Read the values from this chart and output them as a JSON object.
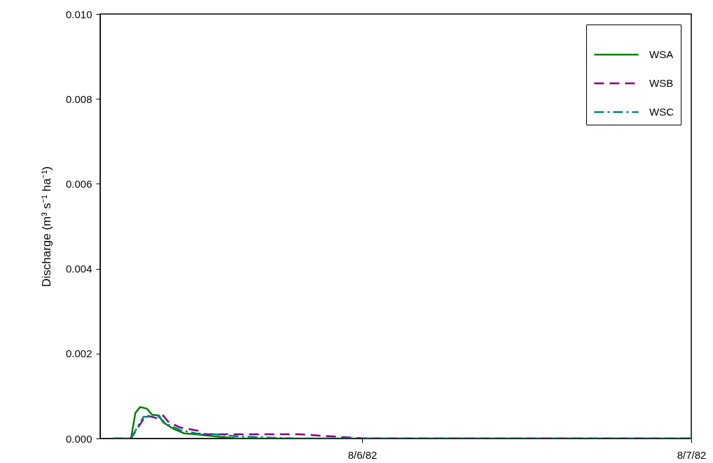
{
  "chart_data": {
    "type": "line",
    "ylabel": "Discharge (m³ s⁻¹ ha⁻¹)",
    "xlim": [
      "1982-08-05T04:54",
      "1982-08-07T00:00"
    ],
    "xticks": [
      {
        "value": "1982-08-06T00:00",
        "label": "8/6/82"
      },
      {
        "value": "1982-08-07T00:00",
        "label": "8/7/82"
      }
    ],
    "ylim": [
      0,
      0.01
    ],
    "yticks": [
      {
        "value": 0,
        "label": "0.000"
      },
      {
        "value": 0.002,
        "label": "0.002"
      },
      {
        "value": 0.004,
        "label": "0.004"
      },
      {
        "value": 0.006,
        "label": "0.006"
      },
      {
        "value": 0.008,
        "label": "0.008"
      },
      {
        "value": 0.01,
        "label": "0.010"
      }
    ],
    "grid": false,
    "legend": "top right",
    "marker": "none",
    "series": [
      {
        "name": "WSA",
        "color": "#008000",
        "line_style": "solid",
        "x": [
          "1982-08-05T05:52",
          "1982-08-05T07:09",
          "1982-08-05T07:28",
          "1982-08-05T07:49",
          "1982-08-05T08:19",
          "1982-08-05T08:41",
          "1982-08-05T09:11",
          "1982-08-05T09:30",
          "1982-08-05T10:13",
          "1982-08-05T11:02",
          "1982-08-05T11:54",
          "1982-08-05T13:17",
          "1982-08-05T14:58",
          "1982-08-07T00:00"
        ],
        "values": [
          0,
          0,
          0.0006,
          0.00074,
          0.0007,
          0.00056,
          0.00054,
          0.00038,
          0.00023,
          0.00012,
          0.0001,
          5e-05,
          0,
          0
        ]
      },
      {
        "name": "WSB",
        "color": "#800080",
        "line_style": "dashed",
        "x": [
          "1982-08-05T05:52",
          "1982-08-05T07:09",
          "1982-08-05T07:40",
          "1982-08-05T08:04",
          "1982-08-05T08:19",
          "1982-08-05T08:59",
          "1982-08-05T09:30",
          "1982-08-05T09:51",
          "1982-08-05T10:43",
          "1982-08-05T12:03",
          "1982-08-05T12:25",
          "1982-08-05T14:06",
          "1982-08-05T16:39",
          "1982-08-05T19:24",
          "1982-08-06T00:09",
          "1982-08-06T02:00",
          "1982-08-07T00:00"
        ],
        "values": [
          0,
          0,
          0.00026,
          0.00046,
          0.00054,
          0.00048,
          0.00054,
          0.0004,
          0.00026,
          0.00018,
          0.0001,
          0.0001,
          0.0001,
          0.0001,
          0,
          0,
          0
        ]
      },
      {
        "name": "WSC",
        "color": "#008080",
        "line_style": "dashdot",
        "x": [
          "1982-08-05T05:52",
          "1982-08-05T07:09",
          "1982-08-05T07:49",
          "1982-08-05T08:04",
          "1982-08-05T09:11",
          "1982-08-05T09:42",
          "1982-08-05T10:43",
          "1982-08-05T11:54",
          "1982-08-05T13:17",
          "1982-08-05T14:58",
          "1982-08-05T19:03",
          "1982-08-07T00:00"
        ],
        "values": [
          0,
          0,
          0.00038,
          0.00051,
          0.00051,
          0.00035,
          0.0002,
          0.00012,
          0.0001,
          5e-05,
          0,
          0
        ]
      }
    ]
  }
}
